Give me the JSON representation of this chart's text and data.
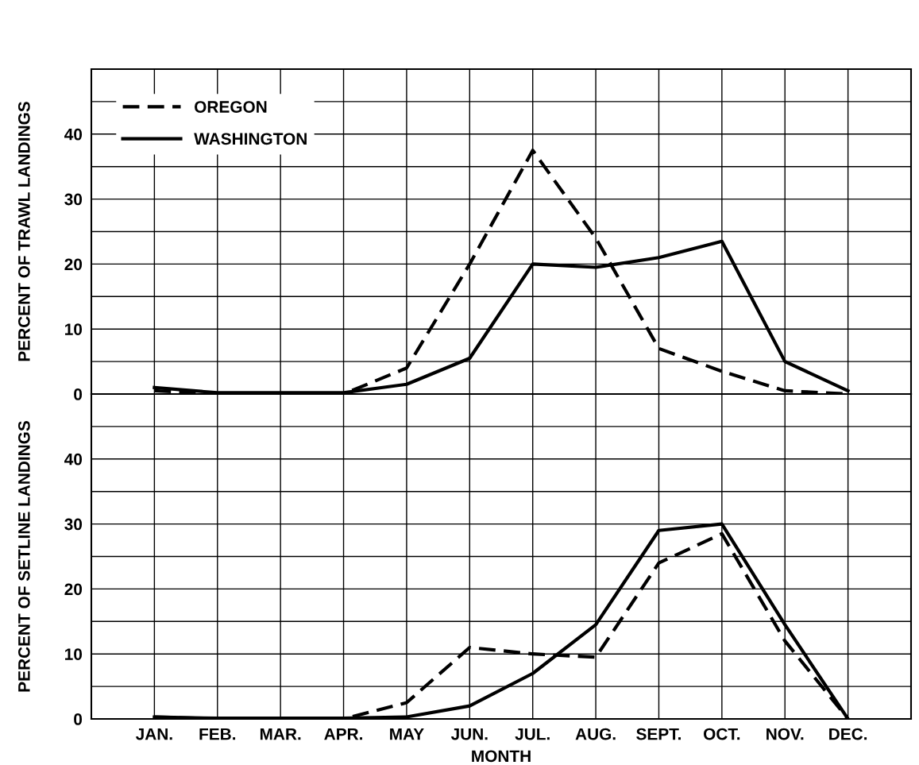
{
  "chart_data": [
    {
      "type": "line",
      "ylabel": "PERCENT OF TRAWL LANDINGS",
      "categories": [
        null,
        null,
        null,
        null,
        null,
        null,
        null,
        null,
        null,
        null,
        null,
        null
      ],
      "ylim": [
        0,
        50
      ],
      "yticks": [
        0,
        {
          "value": 5,
          "label": null
        },
        10,
        {
          "value": 15,
          "label": null
        },
        20,
        {
          "value": 25,
          "label": null
        },
        30,
        {
          "value": 35,
          "label": null
        },
        40,
        {
          "value": 45,
          "label": null
        }
      ],
      "grid": true,
      "legend": "top left",
      "series": [
        {
          "name": "OREGON",
          "color": "#000000",
          "line_style": "dashed",
          "values": [
            0.5,
            0,
            0,
            0,
            4,
            20,
            37.5,
            24,
            7,
            3.5,
            0.5,
            0
          ]
        },
        {
          "name": "WASHINGTON",
          "color": "#000000",
          "line_style": "solid",
          "values": [
            1,
            0.2,
            0.2,
            0.2,
            1.5,
            5.5,
            20,
            19.5,
            21,
            23.5,
            5,
            0.5
          ]
        }
      ]
    },
    {
      "type": "line",
      "ylabel": "PERCENT OF SETLINE LANDINGS",
      "xlabel": "MONTH",
      "categories": [
        "JAN.",
        "FEB.",
        "MAR.",
        "APR.",
        "MAY",
        "JUN.",
        "JUL.",
        "AUG.",
        "SEPT.",
        "OCT.",
        "NOV.",
        "DEC."
      ],
      "ylim": [
        0,
        50
      ],
      "yticks": [
        0,
        {
          "value": 5,
          "label": null
        },
        10,
        {
          "value": 15,
          "label": null
        },
        20,
        {
          "value": 25,
          "label": null
        },
        30,
        {
          "value": 35,
          "label": null
        },
        40,
        {
          "value": 45,
          "label": null
        }
      ],
      "grid": true,
      "series": [
        {
          "color": "#000000",
          "line_style": "dashed",
          "values": [
            0.3,
            0,
            0,
            0,
            2.5,
            11,
            10,
            9.5,
            24,
            28.5,
            12,
            0
          ]
        },
        {
          "color": "#000000",
          "line_style": "solid",
          "values": [
            0.3,
            0.1,
            0.1,
            0.1,
            0.3,
            2,
            7,
            14.5,
            29,
            30,
            14.5,
            0
          ]
        }
      ]
    }
  ]
}
